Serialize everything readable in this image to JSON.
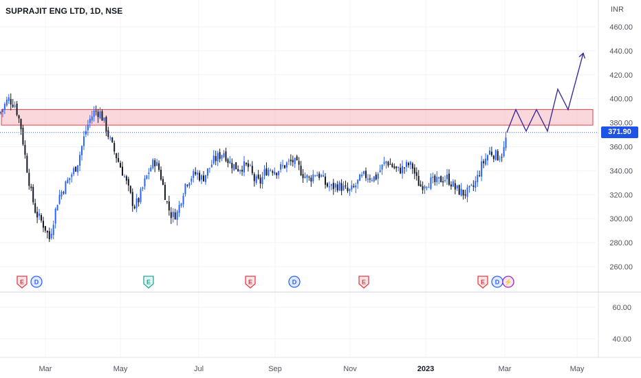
{
  "chart_data": {
    "type": "candlestick",
    "title": "SUPRAJIT ENG LTD, 1D, NSE",
    "currency": "INR",
    "last_price": "371.90",
    "y_axis_ticks": [
      "460.00",
      "440.00",
      "420.00",
      "400.00",
      "380.00",
      "360.00",
      "340.00",
      "320.00",
      "300.00",
      "280.00",
      "260.00"
    ],
    "y_tick_values": [
      460,
      440,
      420,
      400,
      380,
      360,
      340,
      320,
      300,
      280,
      260
    ],
    "ylim": [
      250,
      465
    ],
    "lower_pane_ticks": [
      "60.00",
      "40.00"
    ],
    "x_axis_ticks": [
      {
        "label": "Mar",
        "bold": false
      },
      {
        "label": "May",
        "bold": false
      },
      {
        "label": "Jul",
        "bold": false
      },
      {
        "label": "Sep",
        "bold": false
      },
      {
        "label": "Nov",
        "bold": false
      },
      {
        "label": "2023",
        "bold": true
      },
      {
        "label": "Mar",
        "bold": false
      },
      {
        "label": "May",
        "bold": false
      }
    ],
    "resistance_zone": {
      "low": 378,
      "high": 391
    },
    "price_path": [
      [
        0,
        388
      ],
      [
        12,
        400
      ],
      [
        22,
        395
      ],
      [
        30,
        378
      ],
      [
        37,
        350
      ],
      [
        45,
        322
      ],
      [
        52,
        305
      ],
      [
        60,
        298
      ],
      [
        66,
        292
      ],
      [
        72,
        283
      ],
      [
        78,
        300
      ],
      [
        85,
        318
      ],
      [
        95,
        328
      ],
      [
        105,
        338
      ],
      [
        112,
        345
      ],
      [
        118,
        358
      ],
      [
        124,
        372
      ],
      [
        130,
        382
      ],
      [
        138,
        390
      ],
      [
        146,
        388
      ],
      [
        153,
        378
      ],
      [
        160,
        365
      ],
      [
        167,
        355
      ],
      [
        174,
        345
      ],
      [
        181,
        335
      ],
      [
        188,
        322
      ],
      [
        195,
        310
      ],
      [
        202,
        316
      ],
      [
        210,
        330
      ],
      [
        218,
        342
      ],
      [
        225,
        348
      ],
      [
        232,
        340
      ],
      [
        238,
        325
      ],
      [
        244,
        310
      ],
      [
        250,
        302
      ],
      [
        258,
        305
      ],
      [
        264,
        318
      ],
      [
        270,
        330
      ],
      [
        278,
        335
      ],
      [
        286,
        338
      ],
      [
        294,
        333
      ],
      [
        302,
        340
      ],
      [
        310,
        348
      ],
      [
        318,
        352
      ],
      [
        326,
        356
      ],
      [
        332,
        348
      ],
      [
        338,
        345
      ],
      [
        346,
        342
      ],
      [
        354,
        344
      ],
      [
        362,
        343
      ],
      [
        370,
        332
      ],
      [
        378,
        330
      ],
      [
        386,
        340
      ],
      [
        394,
        342
      ],
      [
        402,
        340
      ],
      [
        410,
        343
      ],
      [
        418,
        346
      ],
      [
        426,
        348
      ],
      [
        434,
        343
      ],
      [
        442,
        336
      ],
      [
        450,
        333
      ],
      [
        458,
        338
      ],
      [
        466,
        336
      ],
      [
        474,
        328
      ],
      [
        482,
        326
      ],
      [
        490,
        328
      ],
      [
        498,
        326
      ],
      [
        506,
        322
      ],
      [
        514,
        325
      ],
      [
        522,
        332
      ],
      [
        530,
        336
      ],
      [
        538,
        335
      ],
      [
        546,
        334
      ],
      [
        554,
        342
      ],
      [
        562,
        348
      ],
      [
        570,
        344
      ],
      [
        578,
        340
      ],
      [
        586,
        342
      ],
      [
        594,
        345
      ],
      [
        600,
        343
      ],
      [
        606,
        332
      ],
      [
        612,
        327
      ],
      [
        618,
        330
      ],
      [
        626,
        331
      ],
      [
        634,
        330
      ],
      [
        642,
        333
      ],
      [
        650,
        334
      ],
      [
        656,
        330
      ],
      [
        662,
        325
      ],
      [
        668,
        323
      ],
      [
        674,
        321
      ],
      [
        680,
        322
      ],
      [
        688,
        326
      ],
      [
        694,
        334
      ],
      [
        700,
        344
      ],
      [
        706,
        350
      ],
      [
        712,
        356
      ],
      [
        718,
        354
      ],
      [
        724,
        352
      ],
      [
        730,
        354
      ],
      [
        734,
        360
      ],
      [
        737,
        372
      ]
    ],
    "projection": [
      [
        737,
        372
      ],
      [
        750,
        391
      ],
      [
        765,
        373
      ],
      [
        780,
        391
      ],
      [
        796,
        373
      ],
      [
        811,
        408
      ],
      [
        826,
        391
      ],
      [
        848,
        438
      ]
    ],
    "events": [
      {
        "type": "E",
        "color": "#e03f48",
        "fill": "#fde6e7",
        "shape": "shield"
      },
      {
        "type": "D",
        "color": "#2962ff",
        "fill": "#e3eaff",
        "shape": "circle"
      },
      {
        "type": "E",
        "color": "#22ab94",
        "fill": "#e2f5ef",
        "shape": "shield"
      },
      {
        "type": "E",
        "color": "#e03f48",
        "fill": "#fde6e7",
        "shape": "shield"
      },
      {
        "type": "D",
        "color": "#2962ff",
        "fill": "#e3eaff",
        "shape": "circle"
      },
      {
        "type": "E",
        "color": "#e03f48",
        "fill": "#fde6e7",
        "shape": "shield"
      },
      {
        "type": "E",
        "color": "#e03f48",
        "fill": "#fde6e7",
        "shape": "shield"
      },
      {
        "type": "D",
        "color": "#2962ff",
        "fill": "#e3eaff",
        "shape": "circle"
      },
      {
        "type": "⚡",
        "color": "#9c27b0",
        "fill": "#f3e5f5",
        "shape": "circle"
      }
    ],
    "colors": {
      "up_candle": "#2962ff",
      "down_candle": "#131722",
      "zone_fill": "#f7c9cd",
      "zone_border": "#e03f48",
      "projection_line": "#3c2b9e",
      "price_line": "#2962ff",
      "grid": "#f0f3fa"
    }
  }
}
